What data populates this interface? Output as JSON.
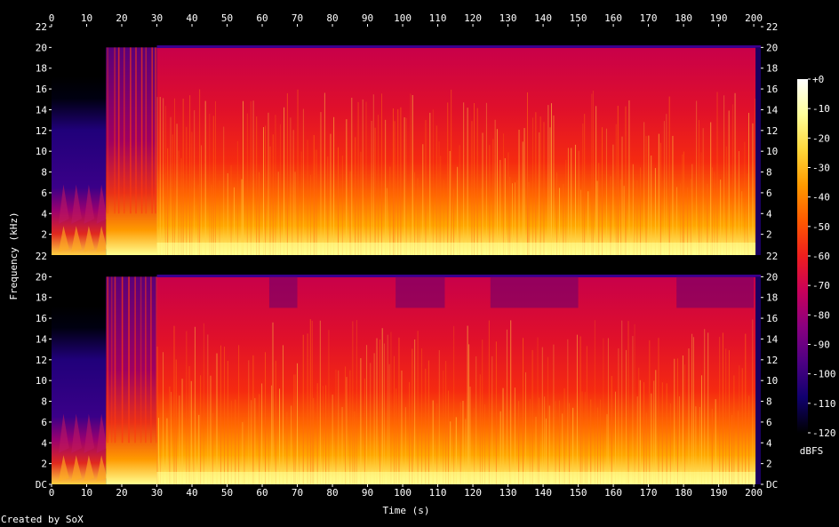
{
  "chart_data": {
    "type": "heatmap",
    "title": "",
    "xlabel": "Time (s)",
    "ylabel": "Frequency (kHz)",
    "xlim": [
      0,
      202
    ],
    "ylim": [
      0,
      22
    ],
    "x_ticks": [
      0,
      10,
      20,
      30,
      40,
      50,
      60,
      70,
      80,
      90,
      100,
      110,
      120,
      130,
      140,
      150,
      160,
      170,
      180,
      190,
      200
    ],
    "y_ticks": [
      "DC",
      "2",
      "4",
      "6",
      "8",
      "10",
      "12",
      "14",
      "16",
      "18",
      "20",
      "22"
    ],
    "channels": [
      {
        "name": "",
        "regions": [
          {
            "t_start": 0,
            "t_end": 15.5,
            "description_level": "quiet intro, energy below 7 kHz"
          },
          {
            "t_start": 15.5,
            "t_end": 30,
            "description_level": "sparse onset, up to 20 kHz"
          },
          {
            "t_start": 30,
            "t_end": 202,
            "description_level": "full band, lowpass at 20 kHz"
          }
        ]
      },
      {
        "name": "",
        "regions": [
          {
            "t_start": 0,
            "t_end": 15.5,
            "description_level": "quiet intro, energy below 7 kHz"
          },
          {
            "t_start": 15.5,
            "t_end": 30,
            "description_level": "sparse onset, up to 20 kHz"
          },
          {
            "t_start": 30,
            "t_end": 202,
            "description_level": "full band, lowpass at 20 kHz"
          }
        ]
      }
    ],
    "colorbar": {
      "label": "dBFS",
      "ticks": [
        "+0",
        "-10",
        "-20",
        "-30",
        "-40",
        "-50",
        "-60",
        "-70",
        "-80",
        "-90",
        "-100",
        "-110",
        "-120"
      ],
      "range": [
        -120,
        0
      ],
      "colors": [
        "#000000",
        "#10006e",
        "#4d0083",
        "#8a0080",
        "#c8005a",
        "#f01e1e",
        "#ff5a00",
        "#ff9a00",
        "#ffd73a",
        "#ffff9a",
        "#ffffff"
      ]
    }
  },
  "credit": "Created by SoX"
}
